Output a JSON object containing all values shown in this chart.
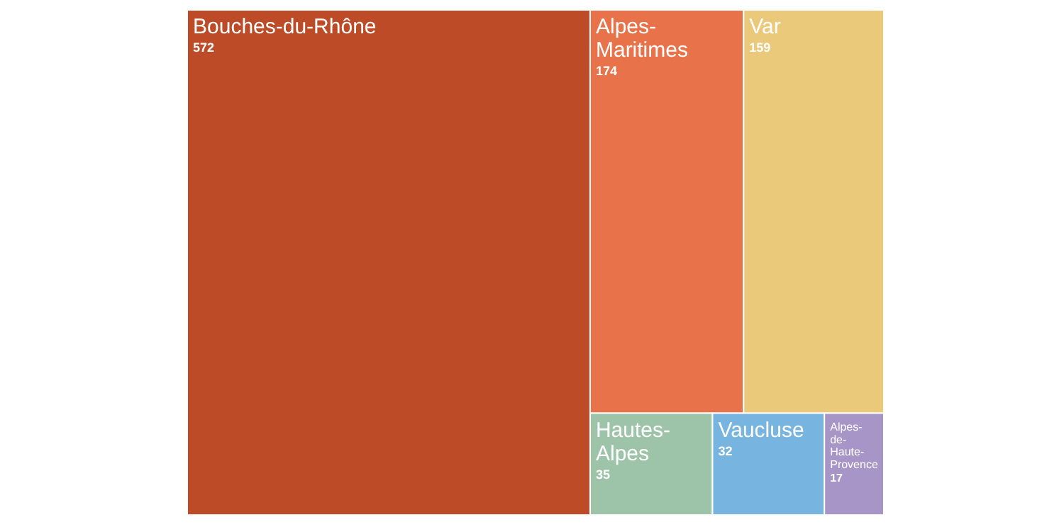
{
  "chart_data": {
    "type": "other",
    "categories": [
      "Bouches-du-Rhône",
      "Alpes-Maritimes",
      "Var",
      "Hautes-Alpes",
      "Vaucluse",
      "Alpes-de-Haute-Provence"
    ],
    "values": [
      572,
      174,
      159,
      35,
      32,
      17
    ],
    "colors": [
      "#be4b27",
      "#e8734a",
      "#ebc97a",
      "#9dc3a8",
      "#78b4e0",
      "#a895c8"
    ],
    "data_labels": true
  }
}
